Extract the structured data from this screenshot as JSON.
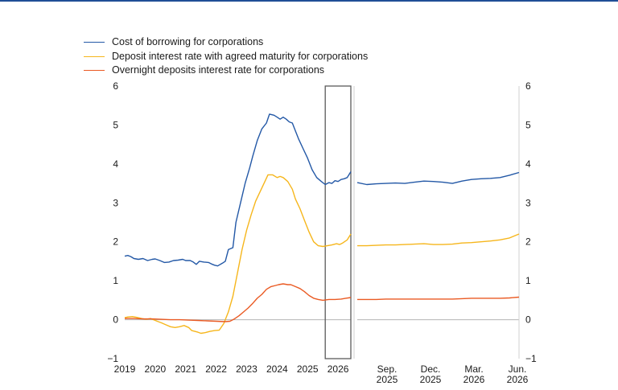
{
  "chart_data": {
    "type": "line",
    "colors": {
      "borrowing": "#2358a6",
      "deposit": "#f6b61c",
      "overnight": "#ea5a23",
      "accent": "#1f4e96"
    },
    "legend": [
      {
        "label": "Cost of borrowing for corporations",
        "color": "#2358a6"
      },
      {
        "label": "Deposit interest rate with agreed maturity for corporations",
        "color": "#f6b61c"
      },
      {
        "label": "Overnight deposits interest rate for corporations",
        "color": "#ea5a23"
      }
    ],
    "ylim": [
      -1,
      6
    ],
    "yticks": [
      "−1",
      "0",
      "1",
      "2",
      "3",
      "4",
      "5",
      "6"
    ],
    "left_panel": {
      "xlim": [
        2019,
        2026.42
      ],
      "xticks": [
        "2019",
        "2020",
        "2021",
        "2022",
        "2023",
        "2024",
        "2025",
        "2026"
      ],
      "highlight_box": [
        2025.58,
        2026.42
      ],
      "series": [
        {
          "key": "borrowing",
          "points": [
            [
              2019.0,
              1.63
            ],
            [
              2019.1,
              1.65
            ],
            [
              2019.2,
              1.62
            ],
            [
              2019.3,
              1.57
            ],
            [
              2019.45,
              1.55
            ],
            [
              2019.6,
              1.57
            ],
            [
              2019.75,
              1.52
            ],
            [
              2019.9,
              1.55
            ],
            [
              2020.0,
              1.56
            ],
            [
              2020.15,
              1.52
            ],
            [
              2020.3,
              1.47
            ],
            [
              2020.45,
              1.48
            ],
            [
              2020.6,
              1.52
            ],
            [
              2020.75,
              1.53
            ],
            [
              2020.9,
              1.55
            ],
            [
              2021.0,
              1.52
            ],
            [
              2021.15,
              1.52
            ],
            [
              2021.25,
              1.48
            ],
            [
              2021.35,
              1.42
            ],
            [
              2021.45,
              1.5
            ],
            [
              2021.6,
              1.48
            ],
            [
              2021.75,
              1.47
            ],
            [
              2021.85,
              1.43
            ],
            [
              2021.95,
              1.4
            ],
            [
              2022.05,
              1.38
            ],
            [
              2022.2,
              1.45
            ],
            [
              2022.3,
              1.5
            ],
            [
              2022.4,
              1.8
            ],
            [
              2022.55,
              1.85
            ],
            [
              2022.65,
              2.5
            ],
            [
              2022.8,
              3.0
            ],
            [
              2022.95,
              3.5
            ],
            [
              2023.1,
              3.9
            ],
            [
              2023.2,
              4.2
            ],
            [
              2023.35,
              4.6
            ],
            [
              2023.5,
              4.9
            ],
            [
              2023.65,
              5.05
            ],
            [
              2023.75,
              5.28
            ],
            [
              2023.9,
              5.25
            ],
            [
              2024.0,
              5.2
            ],
            [
              2024.1,
              5.15
            ],
            [
              2024.2,
              5.2
            ],
            [
              2024.3,
              5.15
            ],
            [
              2024.4,
              5.08
            ],
            [
              2024.5,
              5.05
            ],
            [
              2024.6,
              4.85
            ],
            [
              2024.7,
              4.65
            ],
            [
              2024.85,
              4.4
            ],
            [
              2025.0,
              4.15
            ],
            [
              2025.15,
              3.85
            ],
            [
              2025.3,
              3.65
            ],
            [
              2025.45,
              3.55
            ],
            [
              2025.58,
              3.47
            ],
            [
              2025.7,
              3.52
            ],
            [
              2025.8,
              3.5
            ],
            [
              2025.9,
              3.57
            ],
            [
              2026.0,
              3.55
            ],
            [
              2026.1,
              3.6
            ],
            [
              2026.2,
              3.62
            ],
            [
              2026.3,
              3.65
            ],
            [
              2026.42,
              3.8
            ]
          ]
        },
        {
          "key": "deposit",
          "points": [
            [
              2019.0,
              0.05
            ],
            [
              2019.1,
              0.07
            ],
            [
              2019.25,
              0.08
            ],
            [
              2019.4,
              0.06
            ],
            [
              2019.55,
              0.03
            ],
            [
              2019.7,
              0.01
            ],
            [
              2019.85,
              0.03
            ],
            [
              2020.0,
              -0.02
            ],
            [
              2020.1,
              -0.05
            ],
            [
              2020.2,
              -0.08
            ],
            [
              2020.35,
              -0.13
            ],
            [
              2020.5,
              -0.18
            ],
            [
              2020.65,
              -0.2
            ],
            [
              2020.8,
              -0.18
            ],
            [
              2020.95,
              -0.15
            ],
            [
              2021.1,
              -0.2
            ],
            [
              2021.2,
              -0.28
            ],
            [
              2021.3,
              -0.3
            ],
            [
              2021.4,
              -0.32
            ],
            [
              2021.5,
              -0.35
            ],
            [
              2021.65,
              -0.33
            ],
            [
              2021.8,
              -0.3
            ],
            [
              2021.95,
              -0.28
            ],
            [
              2022.1,
              -0.27
            ],
            [
              2022.25,
              -0.1
            ],
            [
              2022.4,
              0.2
            ],
            [
              2022.55,
              0.6
            ],
            [
              2022.7,
              1.2
            ],
            [
              2022.85,
              1.8
            ],
            [
              2023.0,
              2.3
            ],
            [
              2023.15,
              2.7
            ],
            [
              2023.3,
              3.05
            ],
            [
              2023.45,
              3.3
            ],
            [
              2023.6,
              3.55
            ],
            [
              2023.7,
              3.72
            ],
            [
              2023.85,
              3.72
            ],
            [
              2024.0,
              3.65
            ],
            [
              2024.1,
              3.68
            ],
            [
              2024.2,
              3.65
            ],
            [
              2024.35,
              3.55
            ],
            [
              2024.5,
              3.35
            ],
            [
              2024.6,
              3.1
            ],
            [
              2024.75,
              2.85
            ],
            [
              2024.9,
              2.55
            ],
            [
              2025.05,
              2.25
            ],
            [
              2025.2,
              2.0
            ],
            [
              2025.35,
              1.9
            ],
            [
              2025.5,
              1.88
            ],
            [
              2025.65,
              1.9
            ],
            [
              2025.8,
              1.92
            ],
            [
              2025.95,
              1.95
            ],
            [
              2026.05,
              1.93
            ],
            [
              2026.15,
              1.97
            ],
            [
              2026.3,
              2.05
            ],
            [
              2026.42,
              2.2
            ]
          ]
        },
        {
          "key": "overnight",
          "points": [
            [
              2019.0,
              0.03
            ],
            [
              2019.3,
              0.03
            ],
            [
              2019.6,
              0.02
            ],
            [
              2019.9,
              0.02
            ],
            [
              2020.2,
              0.01
            ],
            [
              2020.5,
              0.0
            ],
            [
              2020.8,
              0.0
            ],
            [
              2021.1,
              -0.01
            ],
            [
              2021.4,
              -0.02
            ],
            [
              2021.7,
              -0.03
            ],
            [
              2022.0,
              -0.04
            ],
            [
              2022.3,
              -0.05
            ],
            [
              2022.45,
              -0.04
            ],
            [
              2022.6,
              0.02
            ],
            [
              2022.75,
              0.1
            ],
            [
              2022.9,
              0.2
            ],
            [
              2023.05,
              0.3
            ],
            [
              2023.2,
              0.42
            ],
            [
              2023.35,
              0.55
            ],
            [
              2023.5,
              0.65
            ],
            [
              2023.65,
              0.78
            ],
            [
              2023.8,
              0.85
            ],
            [
              2023.95,
              0.88
            ],
            [
              2024.05,
              0.9
            ],
            [
              2024.2,
              0.92
            ],
            [
              2024.35,
              0.9
            ],
            [
              2024.45,
              0.9
            ],
            [
              2024.6,
              0.85
            ],
            [
              2024.75,
              0.8
            ],
            [
              2024.9,
              0.72
            ],
            [
              2025.05,
              0.62
            ],
            [
              2025.2,
              0.55
            ],
            [
              2025.35,
              0.52
            ],
            [
              2025.5,
              0.5
            ],
            [
              2025.7,
              0.52
            ],
            [
              2025.9,
              0.52
            ],
            [
              2026.1,
              0.53
            ],
            [
              2026.25,
              0.55
            ],
            [
              2026.42,
              0.57
            ]
          ]
        }
      ]
    },
    "right_panel": {
      "xticks": [
        {
          "line1": "Sep.",
          "line2": "2025"
        },
        {
          "line1": "Dec.",
          "line2": "2025"
        },
        {
          "line1": "Mar.",
          "line2": "2026"
        },
        {
          "line1": "Jun.",
          "line2": "2026"
        }
      ],
      "series": [
        {
          "key": "borrowing",
          "values": [
            3.52,
            3.47,
            3.49,
            3.5,
            3.51,
            3.5,
            3.53,
            3.56,
            3.55,
            3.53,
            3.5,
            3.56,
            3.6,
            3.62,
            3.63,
            3.65,
            3.71,
            3.78
          ]
        },
        {
          "key": "deposit",
          "values": [
            1.9,
            1.9,
            1.91,
            1.92,
            1.92,
            1.93,
            1.94,
            1.95,
            1.93,
            1.93,
            1.94,
            1.97,
            1.98,
            2.0,
            2.02,
            2.05,
            2.1,
            2.2
          ]
        },
        {
          "key": "overnight",
          "values": [
            0.52,
            0.52,
            0.52,
            0.53,
            0.53,
            0.53,
            0.53,
            0.53,
            0.53,
            0.53,
            0.53,
            0.54,
            0.55,
            0.55,
            0.55,
            0.55,
            0.56,
            0.58
          ]
        }
      ]
    }
  }
}
